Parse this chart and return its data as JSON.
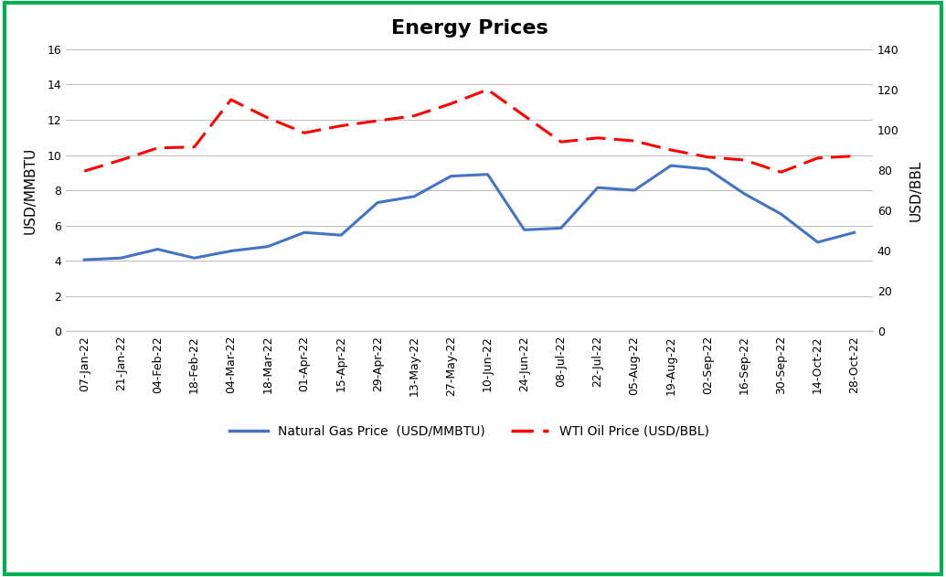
{
  "title": "Energy Prices",
  "title_fontsize": 16,
  "title_fontweight": "bold",
  "ylabel_left": "USD/MMBTU",
  "ylabel_right": "USD/BBL",
  "x_labels": [
    "07-Jan-22",
    "21-Jan-22",
    "04-Feb-22",
    "18-Feb-22",
    "04-Mar-22",
    "18-Mar-22",
    "01-Apr-22",
    "15-Apr-22",
    "29-Apr-22",
    "13-May-22",
    "27-May-22",
    "10-Jun-22",
    "24-Jun-22",
    "08-Jul-22",
    "22-Jul-22",
    "05-Aug-22",
    "19-Aug-22",
    "02-Sep-22",
    "16-Sep-22",
    "30-Sep-22",
    "14-Oct-22",
    "28-Oct-22"
  ],
  "ng_price": [
    4.05,
    4.15,
    4.65,
    4.15,
    4.55,
    4.8,
    5.6,
    5.45,
    7.3,
    7.65,
    8.8,
    8.9,
    5.75,
    5.85,
    8.15,
    8.0,
    9.4,
    9.2,
    7.8,
    6.65,
    5.05,
    5.6
  ],
  "wti_price": [
    79.5,
    85.0,
    91.0,
    91.5,
    115.0,
    106.0,
    98.5,
    102.0,
    104.5,
    107.0,
    113.0,
    120.0,
    107.0,
    94.0,
    96.0,
    94.5,
    90.0,
    86.5,
    85.0,
    79.0,
    86.0,
    87.0
  ],
  "ng_color": "#4472C4",
  "wti_color": "#FF0000",
  "ng_linewidth": 2.2,
  "wti_linewidth": 2.2,
  "ylim_left": [
    0,
    16
  ],
  "ylim_right": [
    0,
    140
  ],
  "yticks_left": [
    0,
    2,
    4,
    6,
    8,
    10,
    12,
    14,
    16
  ],
  "yticks_right": [
    0,
    20,
    40,
    60,
    80,
    100,
    120,
    140
  ],
  "bg_color": "#FFFFFF",
  "border_color": "#00B050",
  "border_linewidth": 3,
  "legend_ng": "Natural Gas Price  (USD/MMBTU)",
  "legend_wti": "WTI Oil Price (USD/BBL)",
  "tick_fontsize": 9,
  "label_fontsize": 11
}
